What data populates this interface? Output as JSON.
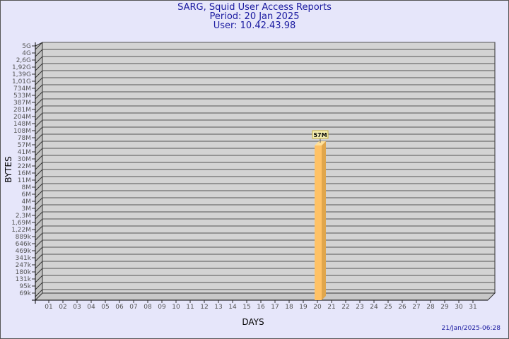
{
  "chart_data": {
    "type": "bar",
    "title": "SARG, Squid User Access Reports",
    "subtitle_lines": [
      "Period: 20 Jan 2025",
      "User: 10.42.43.98"
    ],
    "xlabel": "DAYS",
    "ylabel": "BYTES",
    "y_scale": "log",
    "y_tick_labels": [
      "5G",
      "4G",
      "2,6G",
      "1,92G",
      "1,39G",
      "1,01G",
      "734M",
      "533M",
      "387M",
      "281M",
      "204M",
      "148M",
      "108M",
      "78M",
      "57M",
      "41M",
      "30M",
      "22M",
      "16M",
      "11M",
      "8M",
      "6M",
      "4M",
      "3M",
      "2,3M",
      "1,69M",
      "1,22M",
      "889k",
      "646k",
      "469k",
      "341k",
      "247k",
      "180k",
      "131k",
      "95k",
      "69k"
    ],
    "categories": [
      "01",
      "02",
      "03",
      "04",
      "05",
      "06",
      "07",
      "08",
      "09",
      "10",
      "11",
      "12",
      "13",
      "14",
      "15",
      "16",
      "17",
      "18",
      "19",
      "20",
      "21",
      "22",
      "23",
      "24",
      "25",
      "26",
      "27",
      "28",
      "29",
      "30",
      "31"
    ],
    "values": [
      null,
      null,
      null,
      null,
      null,
      null,
      null,
      null,
      null,
      null,
      null,
      null,
      null,
      null,
      null,
      null,
      null,
      null,
      null,
      "57M",
      null,
      null,
      null,
      null,
      null,
      null,
      null,
      null,
      null,
      null,
      null
    ],
    "data_labels": [
      {
        "category": "20",
        "text": "57M"
      }
    ],
    "grid": true,
    "colors": {
      "bar": "#ffc266",
      "bar_side": "#e0a64c",
      "wall": "#d3d3d3",
      "background": "#e6e6fa",
      "title": "#1a1aa0",
      "label_box": "#f5f0b4"
    }
  },
  "footer": {
    "timestamp": "21/Jan/2025-06:28"
  }
}
